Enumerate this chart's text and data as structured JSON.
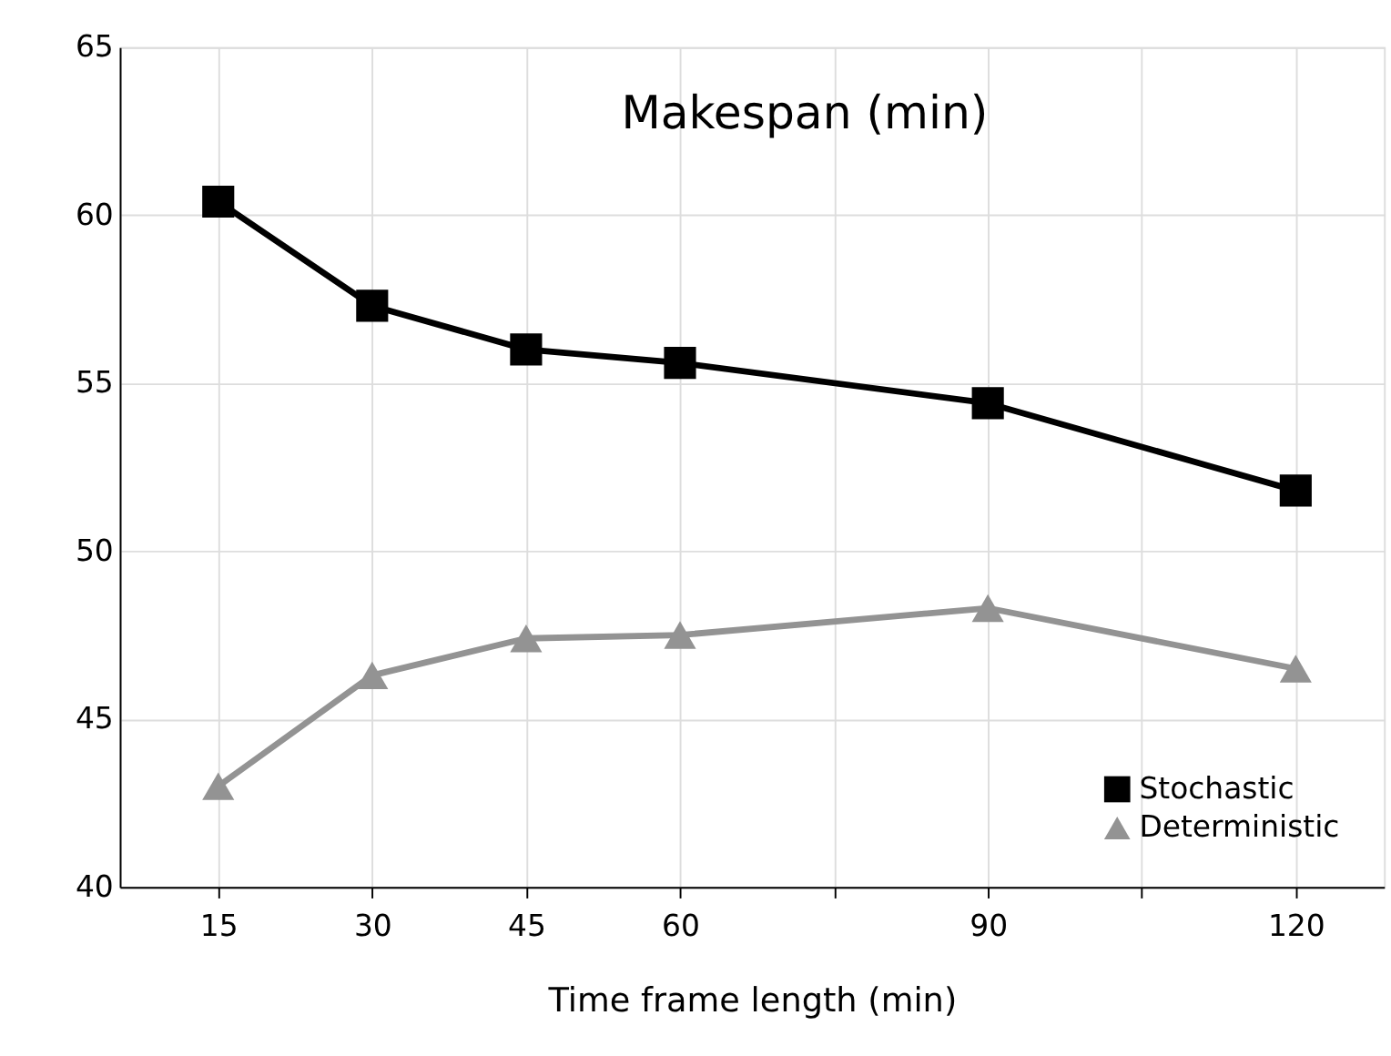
{
  "chart_data": {
    "type": "line",
    "title": "Makespan (min)",
    "xlabel": "Time frame length (min)",
    "x": [
      15,
      30,
      45,
      60,
      90,
      120
    ],
    "series": [
      {
        "name": "Stochastic",
        "color": "#000000",
        "marker": "square",
        "values": [
          60.4,
          57.3,
          56.0,
          55.6,
          54.4,
          51.8
        ]
      },
      {
        "name": "Deterministic",
        "color": "#939393",
        "marker": "triangle",
        "values": [
          43.0,
          46.3,
          47.4,
          47.5,
          48.3,
          46.5
        ]
      }
    ],
    "xlim": [
      5.4,
      128.6
    ],
    "xticks": [
      15,
      30,
      45,
      60,
      {
        "value": 75,
        "label": null
      },
      90,
      {
        "value": 105,
        "label": null
      },
      120
    ],
    "ylim": [
      40,
      65
    ],
    "yticks": [
      40,
      45,
      50,
      55,
      60,
      65
    ],
    "grid": true,
    "legend": "bottom right",
    "line_style": "solid"
  }
}
